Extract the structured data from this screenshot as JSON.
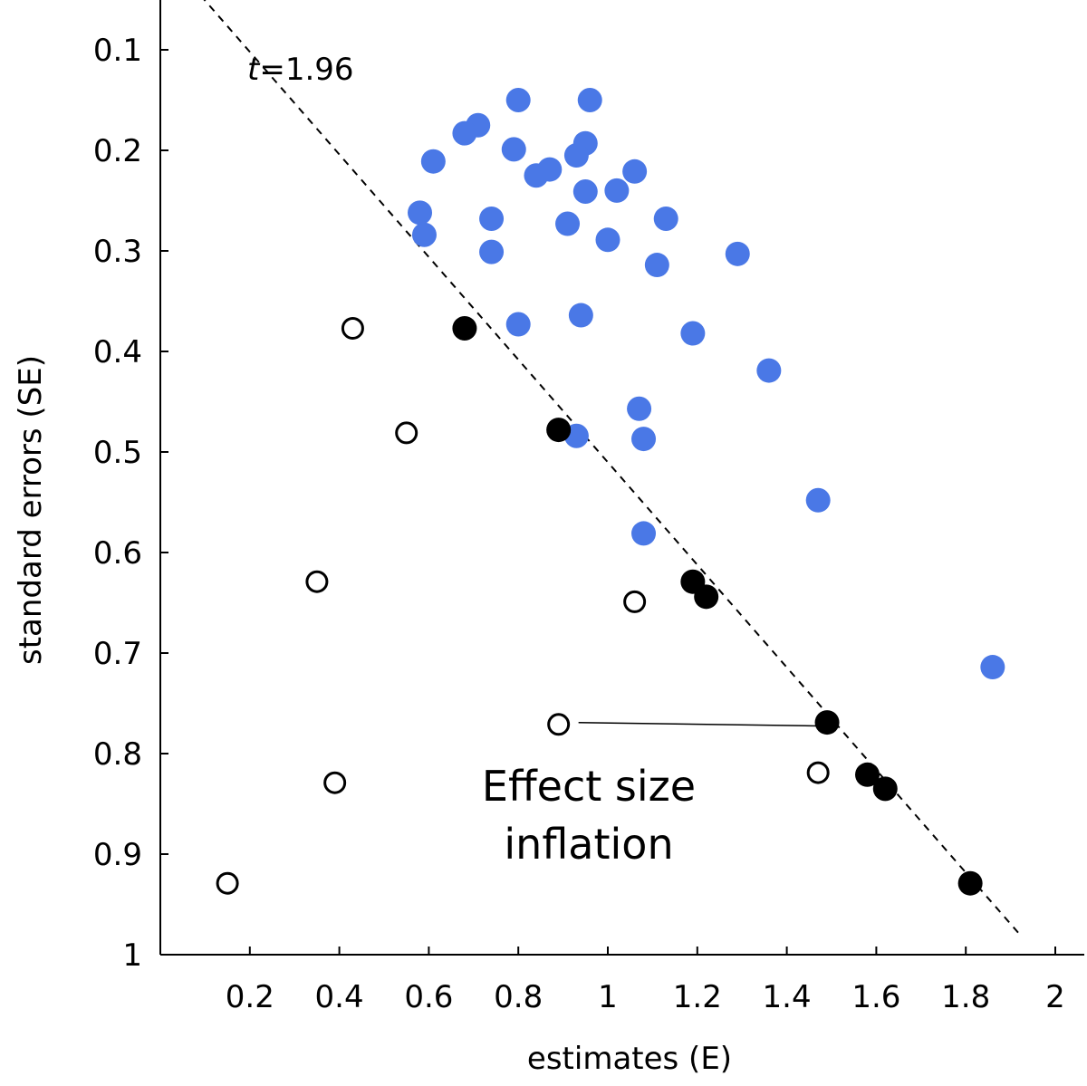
{
  "chart_data": {
    "type": "scatter",
    "xlabel": "estimates (E)",
    "ylabel": "standard errors (SE)",
    "xlim": [
      0.0,
      2.07
    ],
    "ylim": [
      0.05,
      1.0
    ],
    "y_inverted": true,
    "x_ticks": [
      0.2,
      0.4,
      0.6,
      0.8,
      1.0,
      1.2,
      1.4,
      1.6,
      1.8,
      2.0
    ],
    "x_tick_labels": [
      "0.2",
      "0.4",
      "0.6",
      "0.8",
      "1",
      "1.2",
      "1.4",
      "1.6",
      "1.8",
      "2"
    ],
    "y_ticks": [
      0.1,
      0.2,
      0.3,
      0.4,
      0.5,
      0.6,
      0.7,
      0.8,
      0.9,
      1.0
    ],
    "y_tick_labels": [
      "0.1",
      "0.2",
      "0.3",
      "0.4",
      "0.5",
      "0.6",
      "0.7",
      "0.8",
      "0.9",
      "1"
    ],
    "threshold_line": {
      "label_italic": "t",
      "label_rest": "=1.96",
      "slope": 1.96,
      "style": "dashed",
      "x_range": [
        0.05,
        1.92
      ]
    },
    "series": [
      {
        "style": "filled",
        "color": "#4a78e6",
        "points": [
          [
            0.8,
            0.15
          ],
          [
            0.96,
            0.15
          ],
          [
            0.71,
            0.175
          ],
          [
            0.68,
            0.183
          ],
          [
            0.95,
            0.193
          ],
          [
            0.79,
            0.199
          ],
          [
            0.93,
            0.205
          ],
          [
            0.61,
            0.211
          ],
          [
            0.87,
            0.219
          ],
          [
            0.84,
            0.225
          ],
          [
            1.06,
            0.221
          ],
          [
            0.95,
            0.241
          ],
          [
            1.02,
            0.24
          ],
          [
            0.58,
            0.262
          ],
          [
            0.74,
            0.268
          ],
          [
            1.13,
            0.268
          ],
          [
            0.59,
            0.284
          ],
          [
            0.91,
            0.273
          ],
          [
            1.0,
            0.289
          ],
          [
            0.74,
            0.301
          ],
          [
            1.29,
            0.303
          ],
          [
            1.11,
            0.314
          ],
          [
            0.8,
            0.373
          ],
          [
            0.94,
            0.364
          ],
          [
            1.19,
            0.382
          ],
          [
            1.36,
            0.419
          ],
          [
            1.07,
            0.457
          ],
          [
            0.93,
            0.484
          ],
          [
            1.08,
            0.487
          ],
          [
            1.47,
            0.548
          ],
          [
            1.08,
            0.581
          ],
          [
            1.86,
            0.714
          ]
        ]
      },
      {
        "style": "filled",
        "color": "#000000",
        "points": [
          [
            0.68,
            0.377
          ],
          [
            0.89,
            0.478
          ],
          [
            1.19,
            0.629
          ],
          [
            1.22,
            0.644
          ],
          [
            1.49,
            0.769
          ],
          [
            1.58,
            0.821
          ],
          [
            1.62,
            0.835
          ],
          [
            1.81,
            0.929
          ]
        ]
      },
      {
        "style": "open",
        "color": "#000000",
        "points": [
          [
            0.43,
            0.377
          ],
          [
            0.55,
            0.481
          ],
          [
            0.35,
            0.629
          ],
          [
            1.06,
            0.649
          ],
          [
            0.89,
            0.771
          ],
          [
            1.47,
            0.819
          ],
          [
            0.39,
            0.829
          ],
          [
            0.15,
            0.929
          ]
        ]
      }
    ],
    "annotation": {
      "lines": [
        "Effect size",
        "inflation"
      ],
      "arrow_from": [
        0.89,
        0.771
      ],
      "arrow_to": [
        1.47,
        0.77
      ]
    }
  }
}
